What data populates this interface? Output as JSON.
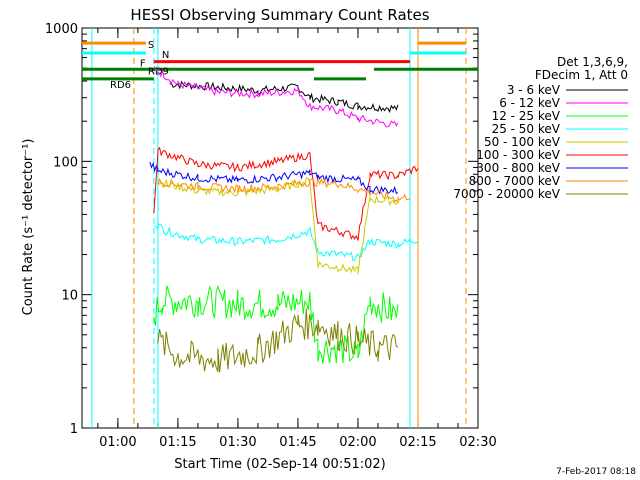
{
  "chart_data": {
    "type": "line",
    "title": "HESSI Observing Summary Count Rates",
    "xlabel": "Start Time (02-Sep-14 00:51:02)",
    "ylabel": "Count Rate (s⁻¹ detector⁻¹)",
    "yscale": "log",
    "ylim": [
      1,
      1000
    ],
    "xlim": [
      "00:51:02",
      "02:30:00"
    ],
    "x_ticks": [
      "01:00",
      "01:15",
      "01:30",
      "01:45",
      "02:00",
      "02:15",
      "02:30"
    ],
    "y_ticks": [
      "1",
      "10",
      "100",
      "1000"
    ],
    "legend_header": [
      "Det 1,3,6,9,",
      "FDecim 1, Att 0"
    ],
    "legend_position": "right",
    "series": [
      {
        "name": "3 - 6 keV",
        "color": "#000000",
        "points": [
          [
            "01:13",
            380
          ],
          [
            "01:25",
            360
          ],
          [
            "01:35",
            340
          ],
          [
            "01:45",
            360
          ],
          [
            "01:48",
            300
          ],
          [
            "01:55",
            280
          ],
          [
            "02:00",
            260
          ],
          [
            "02:10",
            250
          ]
        ]
      },
      {
        "name": "6 - 12 keV",
        "color": "#ff00ff",
        "points": [
          [
            "01:09",
            500
          ],
          [
            "01:15",
            380
          ],
          [
            "01:25",
            330
          ],
          [
            "01:35",
            320
          ],
          [
            "01:45",
            340
          ],
          [
            "01:48",
            260
          ],
          [
            "01:55",
            240
          ],
          [
            "02:00",
            210
          ],
          [
            "02:10",
            185
          ]
        ]
      },
      {
        "name": "12 - 25 keV",
        "color": "#00ff00",
        "points": [
          [
            "01:09",
            7
          ],
          [
            "01:11",
            9
          ],
          [
            "01:20",
            9
          ],
          [
            "01:30",
            8.5
          ],
          [
            "01:40",
            8.5
          ],
          [
            "01:48",
            9
          ],
          [
            "01:50",
            4
          ],
          [
            "01:55",
            4
          ],
          [
            "02:00",
            3.5
          ],
          [
            "02:03",
            9
          ],
          [
            "02:10",
            7
          ]
        ]
      },
      {
        "name": "25 - 50 keV",
        "color": "#00ffff",
        "points": [
          [
            "01:09",
            35
          ],
          [
            "01:12",
            30
          ],
          [
            "01:20",
            26
          ],
          [
            "01:30",
            25
          ],
          [
            "01:40",
            26
          ],
          [
            "01:48",
            30
          ],
          [
            "01:50",
            21
          ],
          [
            "01:55",
            20
          ],
          [
            "02:00",
            19
          ],
          [
            "02:03",
            25
          ],
          [
            "02:10",
            24
          ],
          [
            "02:15",
            26
          ]
        ]
      },
      {
        "name": "50 - 100 keV",
        "color": "#cccc00",
        "points": [
          [
            "01:10",
            70
          ],
          [
            "01:20",
            60
          ],
          [
            "01:30",
            58
          ],
          [
            "01:40",
            62
          ],
          [
            "01:48",
            72
          ],
          [
            "01:50",
            17
          ],
          [
            "01:55",
            16
          ],
          [
            "02:00",
            15
          ],
          [
            "02:03",
            52
          ],
          [
            "02:10",
            50
          ]
        ]
      },
      {
        "name": "100 - 300 keV",
        "color": "#ff0000",
        "points": [
          [
            "01:09",
            40
          ],
          [
            "01:10",
            120
          ],
          [
            "01:20",
            95
          ],
          [
            "01:30",
            90
          ],
          [
            "01:40",
            100
          ],
          [
            "01:48",
            112
          ],
          [
            "01:50",
            33
          ],
          [
            "01:55",
            30
          ],
          [
            "02:00",
            27
          ],
          [
            "02:03",
            80
          ],
          [
            "02:10",
            78
          ],
          [
            "02:15",
            90
          ]
        ]
      },
      {
        "name": "300 - 800 keV",
        "color": "#0000ff",
        "points": [
          [
            "01:08",
            95
          ],
          [
            "01:10",
            85
          ],
          [
            "01:20",
            75
          ],
          [
            "01:30",
            72
          ],
          [
            "01:40",
            76
          ],
          [
            "01:48",
            82
          ],
          [
            "01:50",
            76
          ],
          [
            "02:00",
            72
          ],
          [
            "02:03",
            62
          ],
          [
            "02:10",
            60
          ]
        ]
      },
      {
        "name": "800 - 7000 keV",
        "color": "#ff8c00",
        "points": [
          [
            "01:10",
            70
          ],
          [
            "01:20",
            65
          ],
          [
            "01:30",
            62
          ],
          [
            "01:40",
            65
          ],
          [
            "01:48",
            70
          ],
          [
            "01:55",
            68
          ],
          [
            "02:00",
            62
          ],
          [
            "02:10",
            52
          ],
          [
            "02:13",
            55
          ]
        ]
      },
      {
        "name": "7000 - 20000 keV",
        "color": "#808000",
        "points": [
          [
            "01:10",
            4.5
          ],
          [
            "01:15",
            3.5
          ],
          [
            "01:25",
            3.2
          ],
          [
            "01:35",
            3.8
          ],
          [
            "01:45",
            6
          ],
          [
            "01:50",
            6
          ],
          [
            "01:55",
            5
          ],
          [
            "02:00",
            4.5
          ],
          [
            "02:05",
            4
          ],
          [
            "02:10",
            4
          ]
        ]
      }
    ],
    "annotations": [
      {
        "label": "S",
        "color": "#ff8c00",
        "y": 770,
        "segments": [
          [
            "00:51:02",
            "01:07"
          ],
          [
            "02:15",
            "02:27"
          ]
        ]
      },
      {
        "label": "N",
        "color": "#00ffff",
        "y": 650,
        "segments": [
          [
            "00:51:02",
            "01:07"
          ],
          [
            "02:13",
            "02:27"
          ]
        ]
      },
      {
        "label": "F",
        "color": "#ff0000",
        "y": 560,
        "segments": [
          [
            "01:09",
            "02:13"
          ]
        ]
      },
      {
        "label": "RD9",
        "color": "#008000",
        "y": 490,
        "segments": [
          [
            "00:51:02",
            "01:49"
          ],
          [
            "02:04",
            "02:30"
          ]
        ]
      },
      {
        "label": "RD6",
        "color": "#008000",
        "y": 415,
        "segments": [
          [
            "00:51:02",
            "01:09"
          ],
          [
            "01:49",
            "02:02"
          ]
        ]
      }
    ],
    "vertical_lines": [
      {
        "x": "00:53:30",
        "color": "#00ffff",
        "style": "solid"
      },
      {
        "x": "01:04",
        "color": "#ff8c00",
        "style": "dashed"
      },
      {
        "x": "01:09",
        "color": "#00ffff",
        "style": "dashed"
      },
      {
        "x": "01:10",
        "color": "#00ffff",
        "style": "solid"
      },
      {
        "x": "02:13",
        "color": "#00ffff",
        "style": "solid"
      },
      {
        "x": "02:15",
        "color": "#ff8c00",
        "style": "solid"
      },
      {
        "x": "02:27",
        "color": "#ff8c00",
        "style": "dashed"
      }
    ],
    "footer": "7-Feb-2017 08:18"
  }
}
